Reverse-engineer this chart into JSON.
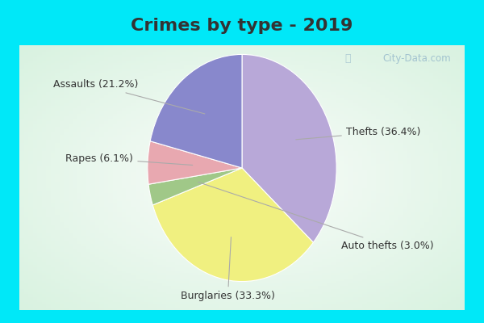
{
  "title": "Crimes by type - 2019",
  "slices": [
    {
      "label": "Thefts",
      "pct": 36.4,
      "color": "#b8a8d8"
    },
    {
      "label": "Burglaries",
      "pct": 33.3,
      "color": "#f0f080"
    },
    {
      "label": "Auto thefts",
      "pct": 3.0,
      "color": "#a0c888"
    },
    {
      "label": "Rapes",
      "pct": 6.1,
      "color": "#e8a8b0"
    },
    {
      "label": "Assaults",
      "pct": 21.2,
      "color": "#8888cc"
    }
  ],
  "background_cyan": "#00e8f8",
  "background_body": "#cceedd",
  "title_fontsize": 16,
  "label_fontsize": 9,
  "watermark": "City-Data.com",
  "title_color": "#333333",
  "label_color": "#333333",
  "annotation_line_color": "#aaaaaa",
  "top_bar_height": 0.1,
  "cyan_border": 0.04
}
